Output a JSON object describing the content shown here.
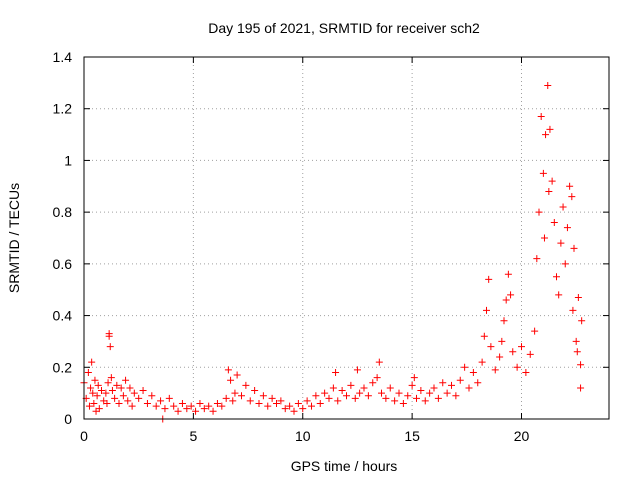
{
  "chart_data": {
    "type": "scatter",
    "title": "Day 195 of 2021, SRMTID for receiver sch2",
    "xlabel": "GPS time / hours",
    "ylabel": "SRMTID / TECUs",
    "xlim": [
      0,
      24
    ],
    "ylim": [
      0,
      1.4
    ],
    "xticks": [
      0,
      5,
      10,
      15,
      20
    ],
    "xtick_labels": [
      "0",
      "5",
      "10",
      "15",
      "20"
    ],
    "yticks": [
      0,
      0.2,
      0.4,
      0.6,
      0.8,
      1.0,
      1.2,
      1.4
    ],
    "ytick_labels": [
      "0",
      "0.2",
      "0.4",
      "0.6",
      "0.8",
      "1",
      "1.2",
      "1.4"
    ],
    "grid": true,
    "marker": "+",
    "colors": {
      "series": "#ff0000",
      "grid": "#a0a0a0",
      "axis": "#000000"
    },
    "series": [
      {
        "name": "sch2",
        "points": [
          [
            0.0,
            0.14
          ],
          [
            0.1,
            0.08
          ],
          [
            0.2,
            0.18
          ],
          [
            0.25,
            0.05
          ],
          [
            0.3,
            0.12
          ],
          [
            0.35,
            0.22
          ],
          [
            0.4,
            0.1
          ],
          [
            0.45,
            0.06
          ],
          [
            0.5,
            0.15
          ],
          [
            0.55,
            0.03
          ],
          [
            0.6,
            0.09
          ],
          [
            0.65,
            0.13
          ],
          [
            0.7,
            0.04
          ],
          [
            0.8,
            0.11
          ],
          [
            0.9,
            0.07
          ],
          [
            1.0,
            0.1
          ],
          [
            1.05,
            0.06
          ],
          [
            1.1,
            0.14
          ],
          [
            1.15,
            0.33
          ],
          [
            1.15,
            0.32
          ],
          [
            1.2,
            0.28
          ],
          [
            1.25,
            0.16
          ],
          [
            1.3,
            0.11
          ],
          [
            1.4,
            0.08
          ],
          [
            1.5,
            0.13
          ],
          [
            1.6,
            0.06
          ],
          [
            1.7,
            0.12
          ],
          [
            1.8,
            0.09
          ],
          [
            1.9,
            0.15
          ],
          [
            2.0,
            0.07
          ],
          [
            2.1,
            0.12
          ],
          [
            2.2,
            0.05
          ],
          [
            2.3,
            0.1
          ],
          [
            2.5,
            0.08
          ],
          [
            2.7,
            0.11
          ],
          [
            2.9,
            0.06
          ],
          [
            3.1,
            0.09
          ],
          [
            3.3,
            0.05
          ],
          [
            3.5,
            0.07
          ],
          [
            3.6,
            0.0
          ],
          [
            3.7,
            0.04
          ],
          [
            3.9,
            0.08
          ],
          [
            4.1,
            0.05
          ],
          [
            4.3,
            0.03
          ],
          [
            4.5,
            0.06
          ],
          [
            4.7,
            0.04
          ],
          [
            4.9,
            0.05
          ],
          [
            5.1,
            0.03
          ],
          [
            5.3,
            0.06
          ],
          [
            5.5,
            0.04
          ],
          [
            5.7,
            0.05
          ],
          [
            5.9,
            0.03
          ],
          [
            6.1,
            0.06
          ],
          [
            6.3,
            0.05
          ],
          [
            6.5,
            0.08
          ],
          [
            6.6,
            0.19
          ],
          [
            6.7,
            0.15
          ],
          [
            6.8,
            0.07
          ],
          [
            6.9,
            0.1
          ],
          [
            7.0,
            0.17
          ],
          [
            7.2,
            0.09
          ],
          [
            7.4,
            0.13
          ],
          [
            7.6,
            0.07
          ],
          [
            7.8,
            0.11
          ],
          [
            8.0,
            0.06
          ],
          [
            8.2,
            0.09
          ],
          [
            8.4,
            0.05
          ],
          [
            8.6,
            0.08
          ],
          [
            8.8,
            0.06
          ],
          [
            9.0,
            0.07
          ],
          [
            9.2,
            0.04
          ],
          [
            9.4,
            0.05
          ],
          [
            9.6,
            0.03
          ],
          [
            9.8,
            0.06
          ],
          [
            10.0,
            0.04
          ],
          [
            10.2,
            0.07
          ],
          [
            10.4,
            0.05
          ],
          [
            10.6,
            0.09
          ],
          [
            10.8,
            0.06
          ],
          [
            11.0,
            0.1
          ],
          [
            11.2,
            0.08
          ],
          [
            11.4,
            0.12
          ],
          [
            11.5,
            0.18
          ],
          [
            11.6,
            0.07
          ],
          [
            11.8,
            0.11
          ],
          [
            12.0,
            0.09
          ],
          [
            12.2,
            0.13
          ],
          [
            12.4,
            0.08
          ],
          [
            12.5,
            0.19
          ],
          [
            12.6,
            0.1
          ],
          [
            12.8,
            0.12
          ],
          [
            13.0,
            0.09
          ],
          [
            13.2,
            0.14
          ],
          [
            13.4,
            0.16
          ],
          [
            13.5,
            0.22
          ],
          [
            13.6,
            0.1
          ],
          [
            13.8,
            0.08
          ],
          [
            14.0,
            0.12
          ],
          [
            14.2,
            0.07
          ],
          [
            14.4,
            0.1
          ],
          [
            14.6,
            0.06
          ],
          [
            14.8,
            0.09
          ],
          [
            15.0,
            0.13
          ],
          [
            15.1,
            0.16
          ],
          [
            15.2,
            0.08
          ],
          [
            15.4,
            0.11
          ],
          [
            15.6,
            0.07
          ],
          [
            15.8,
            0.1
          ],
          [
            16.0,
            0.12
          ],
          [
            16.2,
            0.08
          ],
          [
            16.4,
            0.14
          ],
          [
            16.6,
            0.1
          ],
          [
            16.8,
            0.13
          ],
          [
            17.0,
            0.09
          ],
          [
            17.2,
            0.15
          ],
          [
            17.4,
            0.2
          ],
          [
            17.6,
            0.12
          ],
          [
            17.8,
            0.18
          ],
          [
            18.0,
            0.14
          ],
          [
            18.2,
            0.22
          ],
          [
            18.3,
            0.32
          ],
          [
            18.4,
            0.42
          ],
          [
            18.5,
            0.54
          ],
          [
            18.6,
            0.28
          ],
          [
            18.8,
            0.19
          ],
          [
            19.0,
            0.24
          ],
          [
            19.1,
            0.3
          ],
          [
            19.2,
            0.38
          ],
          [
            19.3,
            0.46
          ],
          [
            19.4,
            0.56
          ],
          [
            19.5,
            0.48
          ],
          [
            19.6,
            0.26
          ],
          [
            19.8,
            0.2
          ],
          [
            20.0,
            0.28
          ],
          [
            20.2,
            0.18
          ],
          [
            20.4,
            0.25
          ],
          [
            20.6,
            0.34
          ],
          [
            20.7,
            0.62
          ],
          [
            20.8,
            0.8
          ],
          [
            20.9,
            1.17
          ],
          [
            21.0,
            0.95
          ],
          [
            21.05,
            0.7
          ],
          [
            21.1,
            1.1
          ],
          [
            21.2,
            1.29
          ],
          [
            21.25,
            0.88
          ],
          [
            21.3,
            1.12
          ],
          [
            21.4,
            0.92
          ],
          [
            21.5,
            0.76
          ],
          [
            21.6,
            0.55
          ],
          [
            21.7,
            0.48
          ],
          [
            21.8,
            0.68
          ],
          [
            21.9,
            0.82
          ],
          [
            22.0,
            0.6
          ],
          [
            22.1,
            0.74
          ],
          [
            22.2,
            0.9
          ],
          [
            22.3,
            0.86
          ],
          [
            22.35,
            0.42
          ],
          [
            22.4,
            0.66
          ],
          [
            22.5,
            0.3
          ],
          [
            22.55,
            0.26
          ],
          [
            22.6,
            0.47
          ],
          [
            22.7,
            0.21
          ],
          [
            22.7,
            0.12
          ],
          [
            22.75,
            0.38
          ]
        ]
      }
    ]
  }
}
